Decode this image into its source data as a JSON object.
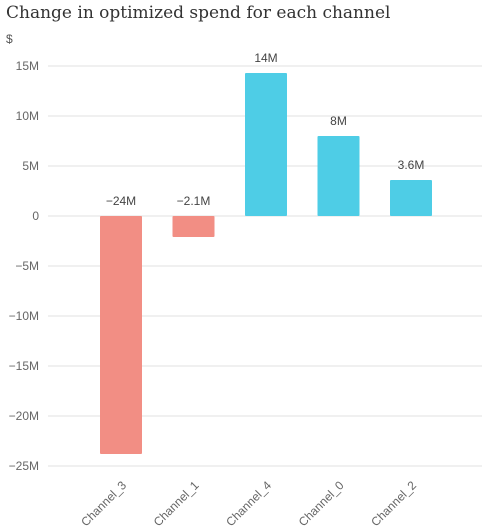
{
  "chart_data": {
    "type": "bar",
    "title": "Change in optimized spend for each channel",
    "ylabel": "$",
    "xlabel": "",
    "categories": [
      "Channel_3",
      "Channel_1",
      "Channel_4",
      "Channel_0",
      "Channel_2"
    ],
    "values": [
      -23800000,
      -2100000,
      14300000,
      8000000,
      3600000
    ],
    "value_labels": [
      "−24M",
      "−2.1M",
      "14M",
      "8M",
      "3.6M"
    ],
    "ylim": [
      -25000000,
      15000000
    ],
    "yticks": [
      15000000,
      10000000,
      5000000,
      0,
      -5000000,
      -10000000,
      -15000000,
      -20000000,
      -25000000
    ],
    "ytick_labels": [
      "15M",
      "10M",
      "5M",
      "0",
      "−5M",
      "−10M",
      "−15M",
      "−20M",
      "−25M"
    ],
    "grid": true,
    "colors": {
      "positive": "#4ecde6",
      "negative": "#f28e84",
      "grid": "#e0e0e0"
    }
  }
}
